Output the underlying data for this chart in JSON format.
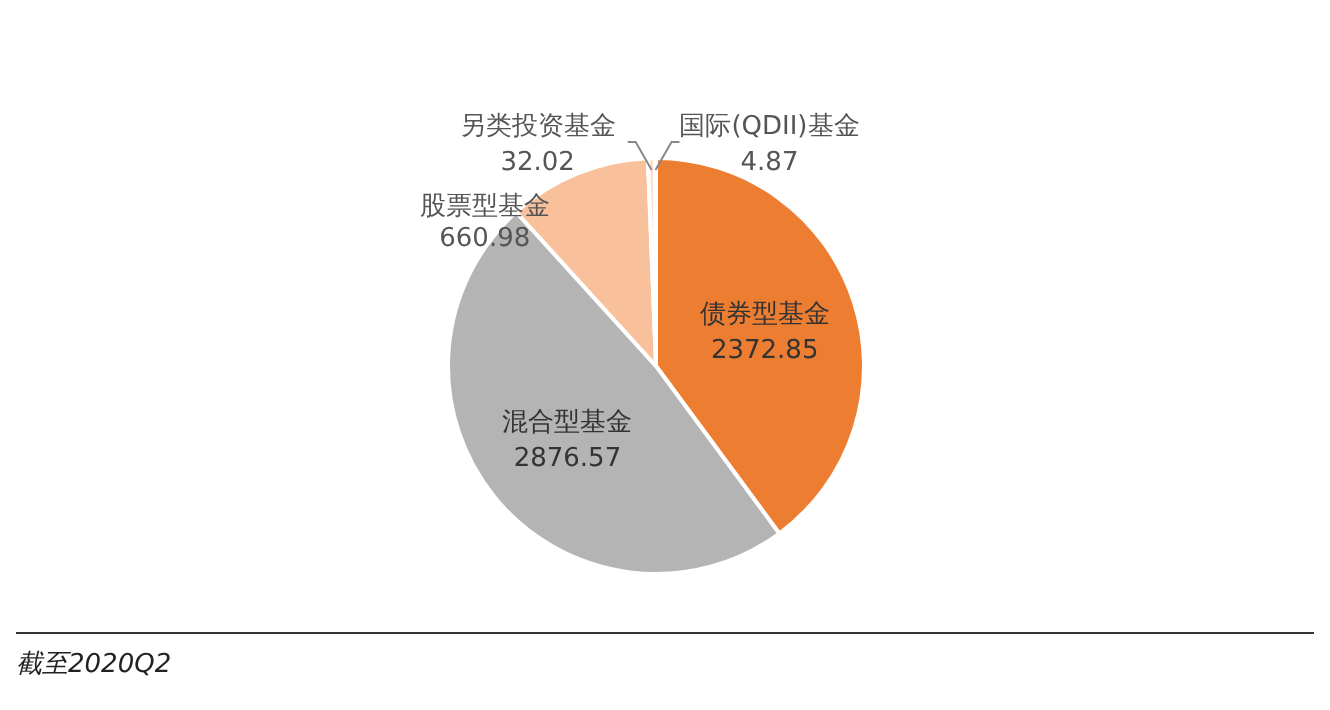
{
  "chart_data": {
    "type": "pie",
    "categories": [
      "债券型基金",
      "混合型基金",
      "股票型基金",
      "另类投资基金",
      "国际(QDII)基金"
    ],
    "values": [
      2372.85,
      2876.57,
      660.98,
      32.02,
      4.87
    ],
    "colors": [
      "#ed7d31",
      "#b4b4b4",
      "#f8c19c",
      "#fbe0cd",
      "#d6dce5"
    ],
    "data_labels": true,
    "annotations": [
      "截至2020Q2"
    ]
  }
}
